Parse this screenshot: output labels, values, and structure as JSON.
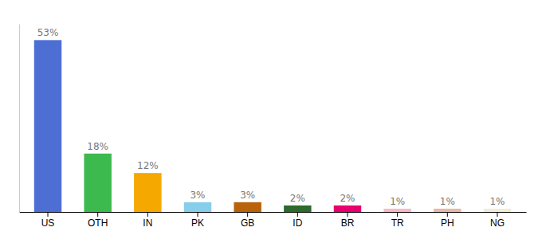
{
  "chart_data": {
    "type": "bar",
    "categories": [
      "US",
      "OTH",
      "IN",
      "PK",
      "GB",
      "ID",
      "BR",
      "TR",
      "PH",
      "NG"
    ],
    "values": [
      53,
      18,
      12,
      3,
      3,
      2,
      2,
      1,
      1,
      1
    ],
    "value_labels": [
      "53%",
      "18%",
      "12%",
      "3%",
      "3%",
      "2%",
      "2%",
      "1%",
      "1%",
      "1%"
    ],
    "colors": [
      "#4d6fd4",
      "#3dba4e",
      "#f5a800",
      "#87ceeb",
      "#b8620a",
      "#2d6a2d",
      "#e8006e",
      "#f9b8c8",
      "#e8b8a8",
      "#f0edd8"
    ],
    "ylim": [
      0,
      58
    ],
    "data_labels": true,
    "tick_labels": "x"
  }
}
